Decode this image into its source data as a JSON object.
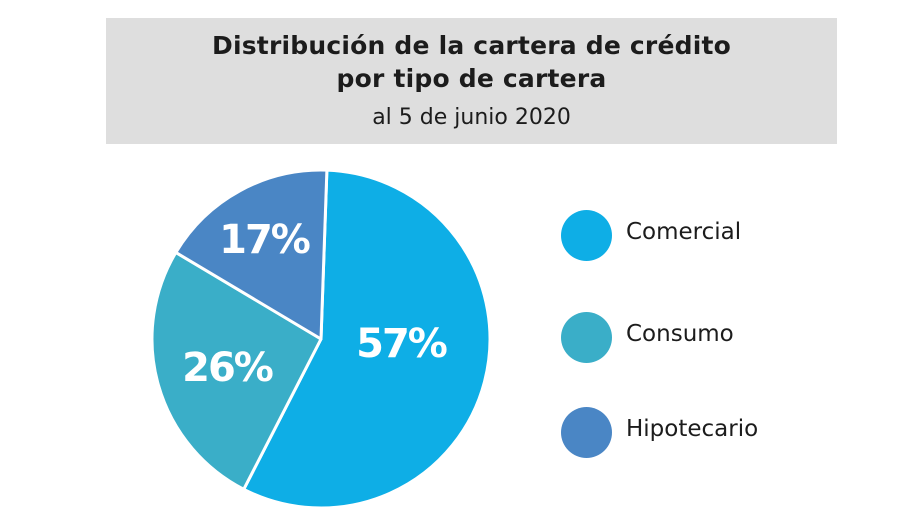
{
  "chart_data": {
    "type": "pie",
    "title_line1": "Distribución de la cartera de crédito",
    "title_line2": "por tipo de cartera",
    "subtitle": "al 5 de junio 2020",
    "categories": [
      "Comercial",
      "Consumo",
      "Hipotecario"
    ],
    "values": [
      57,
      26,
      17
    ],
    "value_labels": [
      "57%",
      "26%",
      "17%"
    ],
    "colors": [
      "#0eaee6",
      "#3aaec8",
      "#4a86c5"
    ],
    "legend_placement": "right"
  }
}
